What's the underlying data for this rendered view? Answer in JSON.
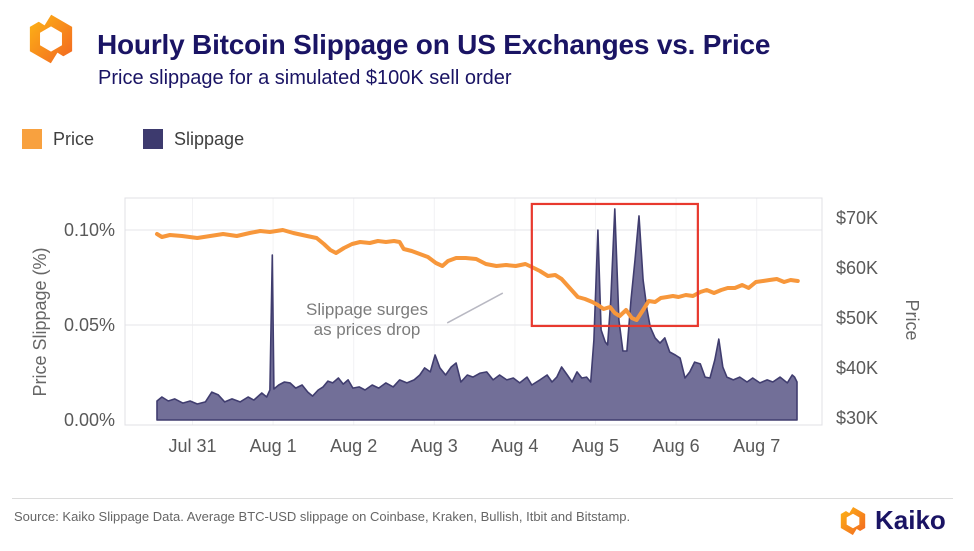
{
  "header": {
    "title": "Hourly Bitcoin Slippage on US Exchanges vs. Price",
    "subtitle": "Price slippage for a simulated $100K sell order"
  },
  "legend": [
    {
      "label": "Price",
      "color": "#F8A13F"
    },
    {
      "label": "Slippage",
      "color": "#3D3A6E"
    }
  ],
  "annotation": {
    "line1": "Slippage surges",
    "line2": "as prices drop"
  },
  "footer": {
    "source": "Source: Kaiko Slippage Data. Average BTC-USD slippage on Coinbase, Kraken, Bullish, Itbit and Bitstamp.",
    "brand": "Kaiko"
  },
  "colors": {
    "navy": "#1a1464",
    "price_line": "#F7973B",
    "slippage_fill": "#6A6792",
    "slippage_stroke": "#403D6F",
    "highlight_red": "#E8392E",
    "grid": "#ebebee",
    "grid_vertical": "#f2f2f4",
    "plot_border": "#e0e0e5",
    "leader": "#b8b8c2"
  },
  "chart_data": {
    "type": "combo",
    "x_axis": {
      "labels": [
        "Jul 31",
        "Aug 1",
        "Aug 2",
        "Aug 3",
        "Aug 4",
        "Aug 5",
        "Aug 6",
        "Aug 7"
      ],
      "positions": [
        0,
        1,
        2,
        3,
        4,
        5,
        6,
        7
      ]
    },
    "left_axis": {
      "title": "Price Slippage (%)",
      "ticks": [
        {
          "label": "0.10%",
          "value": 0.1
        },
        {
          "label": "0.05%",
          "value": 0.05
        },
        {
          "label": "0.00%",
          "value": 0.0
        }
      ],
      "range": [
        0,
        0.117
      ]
    },
    "right_axis": {
      "title": "Price",
      "ticks": [
        {
          "label": "$70K",
          "value": 70
        },
        {
          "label": "$60K",
          "value": 60
        },
        {
          "label": "$50K",
          "value": 50
        },
        {
          "label": "$40K",
          "value": 40
        },
        {
          "label": "$30K",
          "value": 30
        }
      ],
      "range": [
        28.6,
        74
      ]
    },
    "series": [
      {
        "name": "Slippage",
        "type": "area",
        "axis": "left",
        "unit": "%",
        "points": [
          [
            -0.44,
            0.01
          ],
          [
            -0.38,
            0.0121
          ],
          [
            -0.3,
            0.01
          ],
          [
            -0.22,
            0.0111
          ],
          [
            -0.12,
            0.0089
          ],
          [
            -0.03,
            0.01
          ],
          [
            0.06,
            0.0084
          ],
          [
            0.16,
            0.0095
          ],
          [
            0.24,
            0.0147
          ],
          [
            0.32,
            0.0132
          ],
          [
            0.4,
            0.0095
          ],
          [
            0.49,
            0.0111
          ],
          [
            0.59,
            0.0095
          ],
          [
            0.69,
            0.0121
          ],
          [
            0.76,
            0.0105
          ],
          [
            0.86,
            0.0142
          ],
          [
            0.92,
            0.0121
          ],
          [
            0.96,
            0.0158
          ],
          [
            0.99,
            0.0868
          ],
          [
            1.01,
            0.0163
          ],
          [
            1.07,
            0.0184
          ],
          [
            1.14,
            0.02
          ],
          [
            1.21,
            0.0195
          ],
          [
            1.28,
            0.0168
          ],
          [
            1.36,
            0.0184
          ],
          [
            1.43,
            0.0147
          ],
          [
            1.49,
            0.0126
          ],
          [
            1.56,
            0.0158
          ],
          [
            1.62,
            0.0174
          ],
          [
            1.68,
            0.0205
          ],
          [
            1.74,
            0.0195
          ],
          [
            1.81,
            0.0221
          ],
          [
            1.87,
            0.0189
          ],
          [
            1.93,
            0.0211
          ],
          [
            1.99,
            0.0168
          ],
          [
            2.07,
            0.0174
          ],
          [
            2.14,
            0.0158
          ],
          [
            2.23,
            0.0184
          ],
          [
            2.31,
            0.0168
          ],
          [
            2.4,
            0.0195
          ],
          [
            2.49,
            0.0174
          ],
          [
            2.57,
            0.0211
          ],
          [
            2.66,
            0.0195
          ],
          [
            2.75,
            0.0211
          ],
          [
            2.82,
            0.0237
          ],
          [
            2.88,
            0.0274
          ],
          [
            2.95,
            0.0253
          ],
          [
            3.01,
            0.0342
          ],
          [
            3.07,
            0.0274
          ],
          [
            3.14,
            0.0237
          ],
          [
            3.21,
            0.0279
          ],
          [
            3.27,
            0.03
          ],
          [
            3.33,
            0.02
          ],
          [
            3.41,
            0.0237
          ],
          [
            3.48,
            0.0226
          ],
          [
            3.57,
            0.0247
          ],
          [
            3.65,
            0.0253
          ],
          [
            3.73,
            0.0211
          ],
          [
            3.81,
            0.0237
          ],
          [
            3.9,
            0.0211
          ],
          [
            3.98,
            0.0221
          ],
          [
            4.06,
            0.0195
          ],
          [
            4.15,
            0.0226
          ],
          [
            4.21,
            0.0184
          ],
          [
            4.31,
            0.0211
          ],
          [
            4.4,
            0.0237
          ],
          [
            4.46,
            0.02
          ],
          [
            4.52,
            0.0226
          ],
          [
            4.58,
            0.0279
          ],
          [
            4.65,
            0.0237
          ],
          [
            4.71,
            0.02
          ],
          [
            4.77,
            0.0253
          ],
          [
            4.83,
            0.0221
          ],
          [
            4.89,
            0.0226
          ],
          [
            4.94,
            0.02
          ],
          [
            4.98,
            0.0421
          ],
          [
            5.03,
            0.1
          ],
          [
            5.07,
            0.0474
          ],
          [
            5.12,
            0.0411
          ],
          [
            5.15,
            0.0395
          ],
          [
            5.19,
            0.0632
          ],
          [
            5.24,
            0.1111
          ],
          [
            5.29,
            0.0526
          ],
          [
            5.34,
            0.0363
          ],
          [
            5.39,
            0.0363
          ],
          [
            5.44,
            0.0632
          ],
          [
            5.49,
            0.0842
          ],
          [
            5.54,
            0.1074
          ],
          [
            5.59,
            0.0737
          ],
          [
            5.64,
            0.0579
          ],
          [
            5.68,
            0.0489
          ],
          [
            5.74,
            0.0432
          ],
          [
            5.8,
            0.0405
          ],
          [
            5.86,
            0.0432
          ],
          [
            5.92,
            0.0358
          ],
          [
            5.99,
            0.0342
          ],
          [
            6.05,
            0.0326
          ],
          [
            6.11,
            0.0221
          ],
          [
            6.17,
            0.0253
          ],
          [
            6.23,
            0.0305
          ],
          [
            6.3,
            0.0295
          ],
          [
            6.36,
            0.0226
          ],
          [
            6.42,
            0.0221
          ],
          [
            6.48,
            0.0316
          ],
          [
            6.53,
            0.0426
          ],
          [
            6.58,
            0.0279
          ],
          [
            6.63,
            0.0226
          ],
          [
            6.71,
            0.0211
          ],
          [
            6.79,
            0.0226
          ],
          [
            6.88,
            0.02
          ],
          [
            6.95,
            0.0221
          ],
          [
            7.04,
            0.0195
          ],
          [
            7.13,
            0.0211
          ],
          [
            7.2,
            0.02
          ],
          [
            7.29,
            0.0226
          ],
          [
            7.38,
            0.0195
          ],
          [
            7.44,
            0.0237
          ],
          [
            7.47,
            0.0226
          ],
          [
            7.5,
            0.02
          ]
        ]
      },
      {
        "name": "Price",
        "type": "line",
        "axis": "right",
        "unit": "$K",
        "points": [
          [
            -0.44,
            66.8
          ],
          [
            -0.38,
            66.2
          ],
          [
            -0.28,
            66.6
          ],
          [
            -0.13,
            66.4
          ],
          [
            0.06,
            66.0
          ],
          [
            0.22,
            66.4
          ],
          [
            0.38,
            66.8
          ],
          [
            0.55,
            66.4
          ],
          [
            0.71,
            67.0
          ],
          [
            0.84,
            67.4
          ],
          [
            0.96,
            67.2
          ],
          [
            1.12,
            67.6
          ],
          [
            1.25,
            67.0
          ],
          [
            1.42,
            66.4
          ],
          [
            1.54,
            66.0
          ],
          [
            1.63,
            64.8
          ],
          [
            1.71,
            63.6
          ],
          [
            1.78,
            63.0
          ],
          [
            1.88,
            64.0
          ],
          [
            1.98,
            64.8
          ],
          [
            2.08,
            65.2
          ],
          [
            2.2,
            65.0
          ],
          [
            2.3,
            65.4
          ],
          [
            2.4,
            65.2
          ],
          [
            2.5,
            65.4
          ],
          [
            2.57,
            65.2
          ],
          [
            2.62,
            63.8
          ],
          [
            2.72,
            63.4
          ],
          [
            2.82,
            62.8
          ],
          [
            2.92,
            62.2
          ],
          [
            3.02,
            61.0
          ],
          [
            3.1,
            60.4
          ],
          [
            3.17,
            61.4
          ],
          [
            3.27,
            62.0
          ],
          [
            3.39,
            62.0
          ],
          [
            3.52,
            61.8
          ],
          [
            3.64,
            60.8
          ],
          [
            3.77,
            60.4
          ],
          [
            3.89,
            60.6
          ],
          [
            4.01,
            60.4
          ],
          [
            4.13,
            60.8
          ],
          [
            4.21,
            60.2
          ],
          [
            4.31,
            59.4
          ],
          [
            4.41,
            58.4
          ],
          [
            4.5,
            58.6
          ],
          [
            4.58,
            57.8
          ],
          [
            4.68,
            56.0
          ],
          [
            4.78,
            54.2
          ],
          [
            4.87,
            53.8
          ],
          [
            4.96,
            53.2
          ],
          [
            5.03,
            52.6
          ],
          [
            5.1,
            51.8
          ],
          [
            5.18,
            52.2
          ],
          [
            5.24,
            51.0
          ],
          [
            5.3,
            50.4
          ],
          [
            5.38,
            51.6
          ],
          [
            5.45,
            50.0
          ],
          [
            5.51,
            49.6
          ],
          [
            5.59,
            51.6
          ],
          [
            5.66,
            53.4
          ],
          [
            5.74,
            53.2
          ],
          [
            5.81,
            54.0
          ],
          [
            5.89,
            54.2
          ],
          [
            5.96,
            54.4
          ],
          [
            6.03,
            54.2
          ],
          [
            6.12,
            54.6
          ],
          [
            6.21,
            54.4
          ],
          [
            6.3,
            55.2
          ],
          [
            6.38,
            55.6
          ],
          [
            6.47,
            55.0
          ],
          [
            6.56,
            55.6
          ],
          [
            6.64,
            56.0
          ],
          [
            6.73,
            56.0
          ],
          [
            6.82,
            56.6
          ],
          [
            6.9,
            56.0
          ],
          [
            6.99,
            57.2
          ],
          [
            7.08,
            57.4
          ],
          [
            7.16,
            57.6
          ],
          [
            7.25,
            57.8
          ],
          [
            7.34,
            57.2
          ],
          [
            7.42,
            57.6
          ],
          [
            7.51,
            57.4
          ]
        ]
      }
    ],
    "highlight_box": {
      "x0": 4.21,
      "x1": 6.27,
      "pct0": 0.0495,
      "pct1": 0.1137
    },
    "leader_line": {
      "x0": 3.16,
      "pct0": 0.0511,
      "x1": 3.85,
      "pct1": 0.0668
    }
  }
}
